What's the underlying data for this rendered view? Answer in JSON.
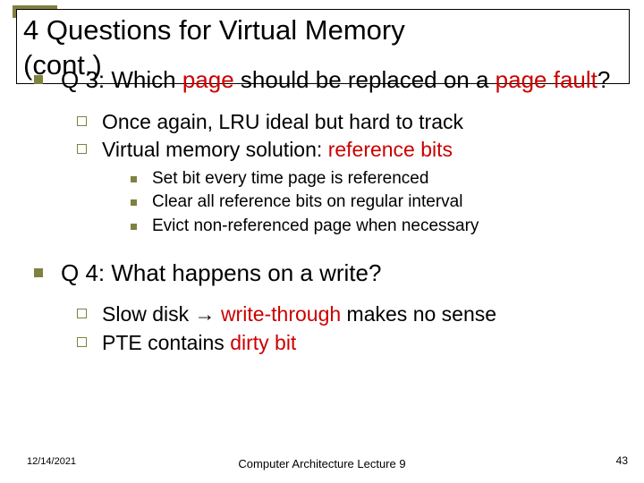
{
  "colors": {
    "accent": "#808040",
    "highlight": "#cc0000",
    "text": "#000000",
    "background": "#ffffff"
  },
  "fonts": {
    "title_size": 31,
    "l1_size": 26,
    "l2_size": 23,
    "l3_size": 19,
    "footer_small": 11,
    "footer_center": 13
  },
  "title": {
    "line1": "4 Questions for Virtual Memory",
    "line2": "(cont.)"
  },
  "body": {
    "q3": {
      "prefix": "Q 3: Which ",
      "hl1": "page",
      "mid": " should be replaced on a ",
      "hl2": "page fault",
      "suffix": "?"
    },
    "q3_sub1": "Once again, LRU ideal but hard to track",
    "q3_sub2": {
      "prefix": "Virtual memory solution: ",
      "hl": "reference bits"
    },
    "q3_sub2_a": "Set bit every time page is referenced",
    "q3_sub2_b": "Clear all reference bits on regular interval",
    "q3_sub2_c": "Evict non-referenced page when necessary",
    "q4": "Q 4: What happens on a write?",
    "q4_sub1": {
      "prefix": "Slow disk ",
      "arrow": "→",
      "mid": " ",
      "hl": "write-through",
      "suffix": " makes no sense"
    },
    "q4_sub2": {
      "prefix": "PTE contains ",
      "hl": "dirty bit"
    }
  },
  "footer": {
    "date": "12/14/2021",
    "center": "Computer Architecture Lecture 9",
    "page": "43"
  }
}
